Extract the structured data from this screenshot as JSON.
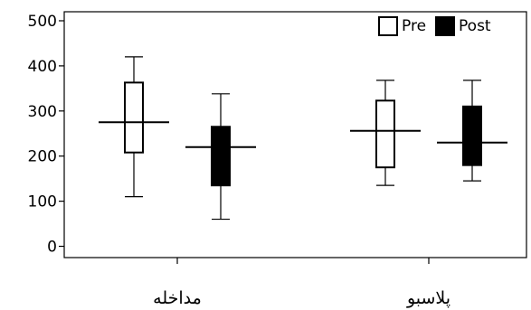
{
  "chart_data": {
    "type": "boxplot",
    "categories": [
      "مداخله",
      "پلاسبو"
    ],
    "yticks": [
      0,
      100,
      200,
      300,
      400,
      500
    ],
    "ylim": [
      -25,
      520
    ],
    "grid": false,
    "legend_position": "top-right",
    "series": [
      {
        "name": "Pre",
        "color": "#ffffff",
        "boxes": [
          {
            "min": 110,
            "q1": 208,
            "median": 275,
            "q3": 363,
            "max": 420
          },
          {
            "min": 135,
            "q1": 175,
            "median": 256,
            "q3": 323,
            "max": 368
          }
        ]
      },
      {
        "name": "Post",
        "color": "#000000",
        "boxes": [
          {
            "min": 60,
            "q1": 135,
            "median": 220,
            "q3": 265,
            "max": 338
          },
          {
            "min": 145,
            "q1": 180,
            "median": 230,
            "q3": 310,
            "max": 368
          }
        ]
      }
    ]
  }
}
